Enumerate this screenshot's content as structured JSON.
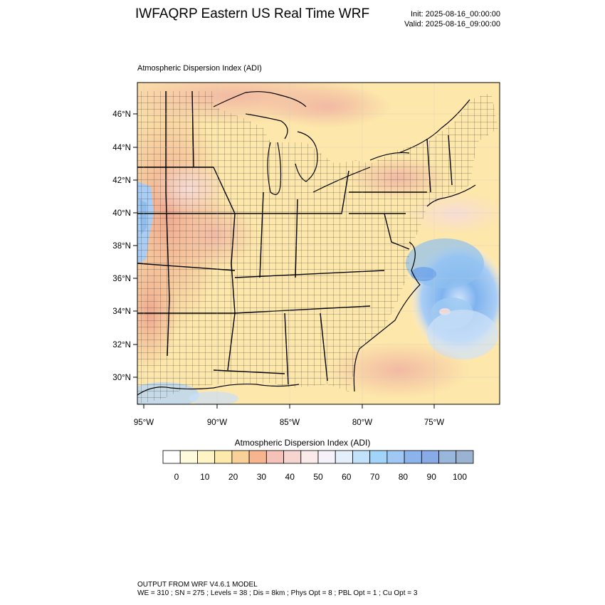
{
  "header": {
    "title": "IWFAQRP Eastern US Real Time WRF",
    "init": "Init: 2025-08-16_00:00:00",
    "valid": "Valid: 2025-08-16_09:00:00"
  },
  "map": {
    "field_label": "Atmospheric Dispersion Index   (ADI)",
    "lat_labels": [
      "46°N",
      "44°N",
      "42°N",
      "40°N",
      "38°N",
      "36°N",
      "34°N",
      "32°N",
      "30°N"
    ],
    "lon_labels": [
      "95°W",
      "90°W",
      "85°W",
      "80°W",
      "75°W"
    ],
    "colors": {
      "land_base": "#fbe8a8",
      "reddish": "#f5c2a8",
      "water_blue": "#8fc2f0",
      "deep_blue": "#6fa6ec",
      "boundary": "#000000"
    }
  },
  "colorbar": {
    "title": "Atmospheric Dispersion Index  (ADI)",
    "tick_labels": [
      "0",
      "10",
      "20",
      "30",
      "40",
      "50",
      "60",
      "70",
      "80",
      "90",
      "100"
    ],
    "colors": [
      "#ffffff",
      "#fefbdc",
      "#fef4c4",
      "#fde9a9",
      "#f8d098",
      "#f6b58f",
      "#f4c2b8",
      "#f6d4d0",
      "#faeaea",
      "#f5f2fa",
      "#e4effc",
      "#c1e2fa",
      "#a1d4f8",
      "#9fc8f5",
      "#8bb3ec",
      "#88aae6",
      "#99b7dc",
      "#9ab3d2"
    ]
  },
  "footer": {
    "line1": "OUTPUT FROM WRF V4.6.1 MODEL",
    "line2": "WE = 310 ; SN = 275 ; Levels = 38 ; Dis = 8km ; Phys Opt = 8 ; PBL Opt = 1 ; Cu Opt = 3"
  }
}
